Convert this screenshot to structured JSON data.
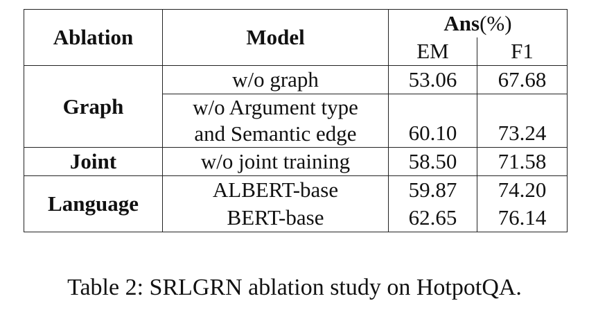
{
  "table": {
    "headers": {
      "ablation": "Ablation",
      "model": "Model",
      "ans_label": "Ans",
      "ans_unit": "(%)",
      "em": "EM",
      "f1": "F1"
    },
    "groups": [
      {
        "name": "Graph",
        "rows": [
          {
            "model_lines": [
              "w/o graph"
            ],
            "em": "53.06",
            "f1": "67.68"
          },
          {
            "model_lines": [
              "w/o Argument type",
              "and Semantic edge"
            ],
            "em": "60.10",
            "f1": "73.24"
          }
        ]
      },
      {
        "name": "Joint",
        "rows": [
          {
            "model_lines": [
              "w/o joint training"
            ],
            "em": "58.50",
            "f1": "71.58"
          }
        ]
      },
      {
        "name": "Language",
        "rows": [
          {
            "model_lines": [
              "ALBERT-base"
            ],
            "em": "59.87",
            "f1": "74.20"
          },
          {
            "model_lines": [
              "BERT-base"
            ],
            "em": "62.65",
            "f1": "76.14"
          }
        ]
      }
    ]
  },
  "caption": "Table 2: SRLGRN ablation study on HotpotQA."
}
